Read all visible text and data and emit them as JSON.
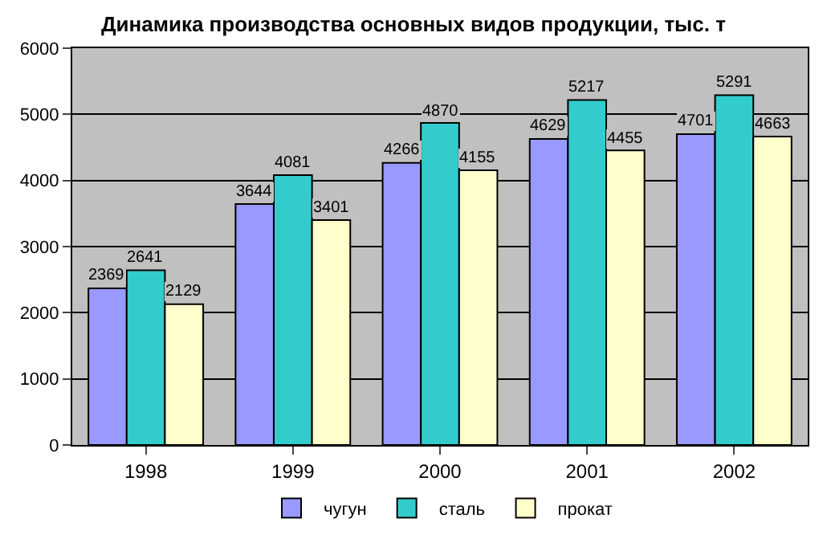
{
  "chart_data": {
    "type": "bar",
    "title": "Динамика производства основных видов продукции, тыс. т",
    "categories": [
      "1998",
      "1999",
      "2000",
      "2001",
      "2002"
    ],
    "series": [
      {
        "name": "чугун",
        "color": "#9999ff",
        "values": [
          2369,
          3644,
          4266,
          4629,
          4701
        ]
      },
      {
        "name": "сталь",
        "color": "#33cccc",
        "values": [
          2641,
          4081,
          4870,
          5217,
          5291
        ]
      },
      {
        "name": "прокат",
        "color": "#ffffcc",
        "values": [
          2129,
          3401,
          4155,
          4455,
          4663
        ]
      }
    ],
    "ylim": [
      0,
      6000
    ],
    "yticks": [
      0,
      1000,
      2000,
      3000,
      4000,
      5000,
      6000
    ],
    "grid": "y",
    "legend": "bottom",
    "data_labels": true
  }
}
